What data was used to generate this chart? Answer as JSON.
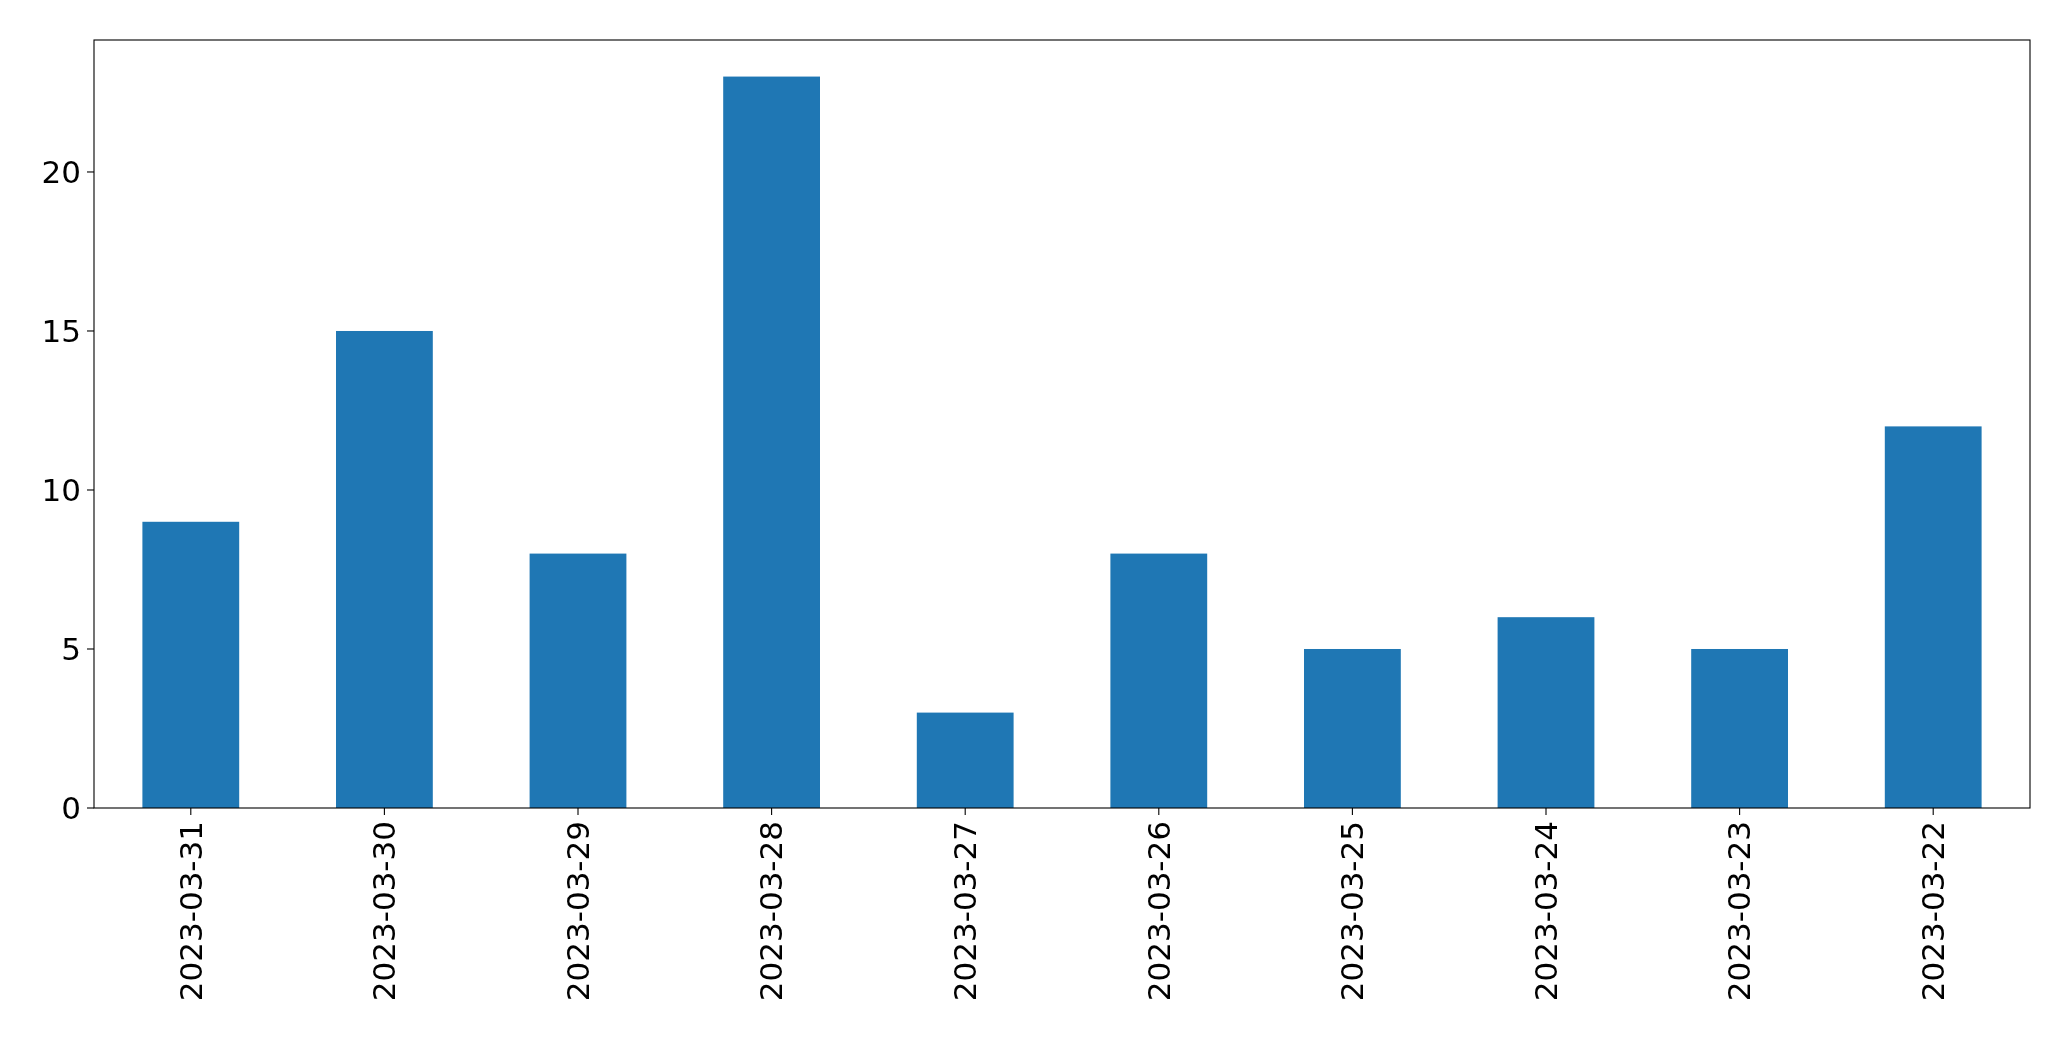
{
  "chart_data": {
    "type": "bar",
    "categories": [
      "2023-03-31",
      "2023-03-30",
      "2023-03-29",
      "2023-03-28",
      "2023-03-27",
      "2023-03-26",
      "2023-03-25",
      "2023-03-24",
      "2023-03-23",
      "2023-03-22"
    ],
    "values": [
      9,
      15,
      8,
      23,
      3,
      8,
      5,
      6,
      5,
      12
    ],
    "color": "#1f77b4",
    "ylim": [
      0,
      24.15
    ],
    "yticks": [
      0,
      5,
      10,
      15,
      20
    ]
  }
}
